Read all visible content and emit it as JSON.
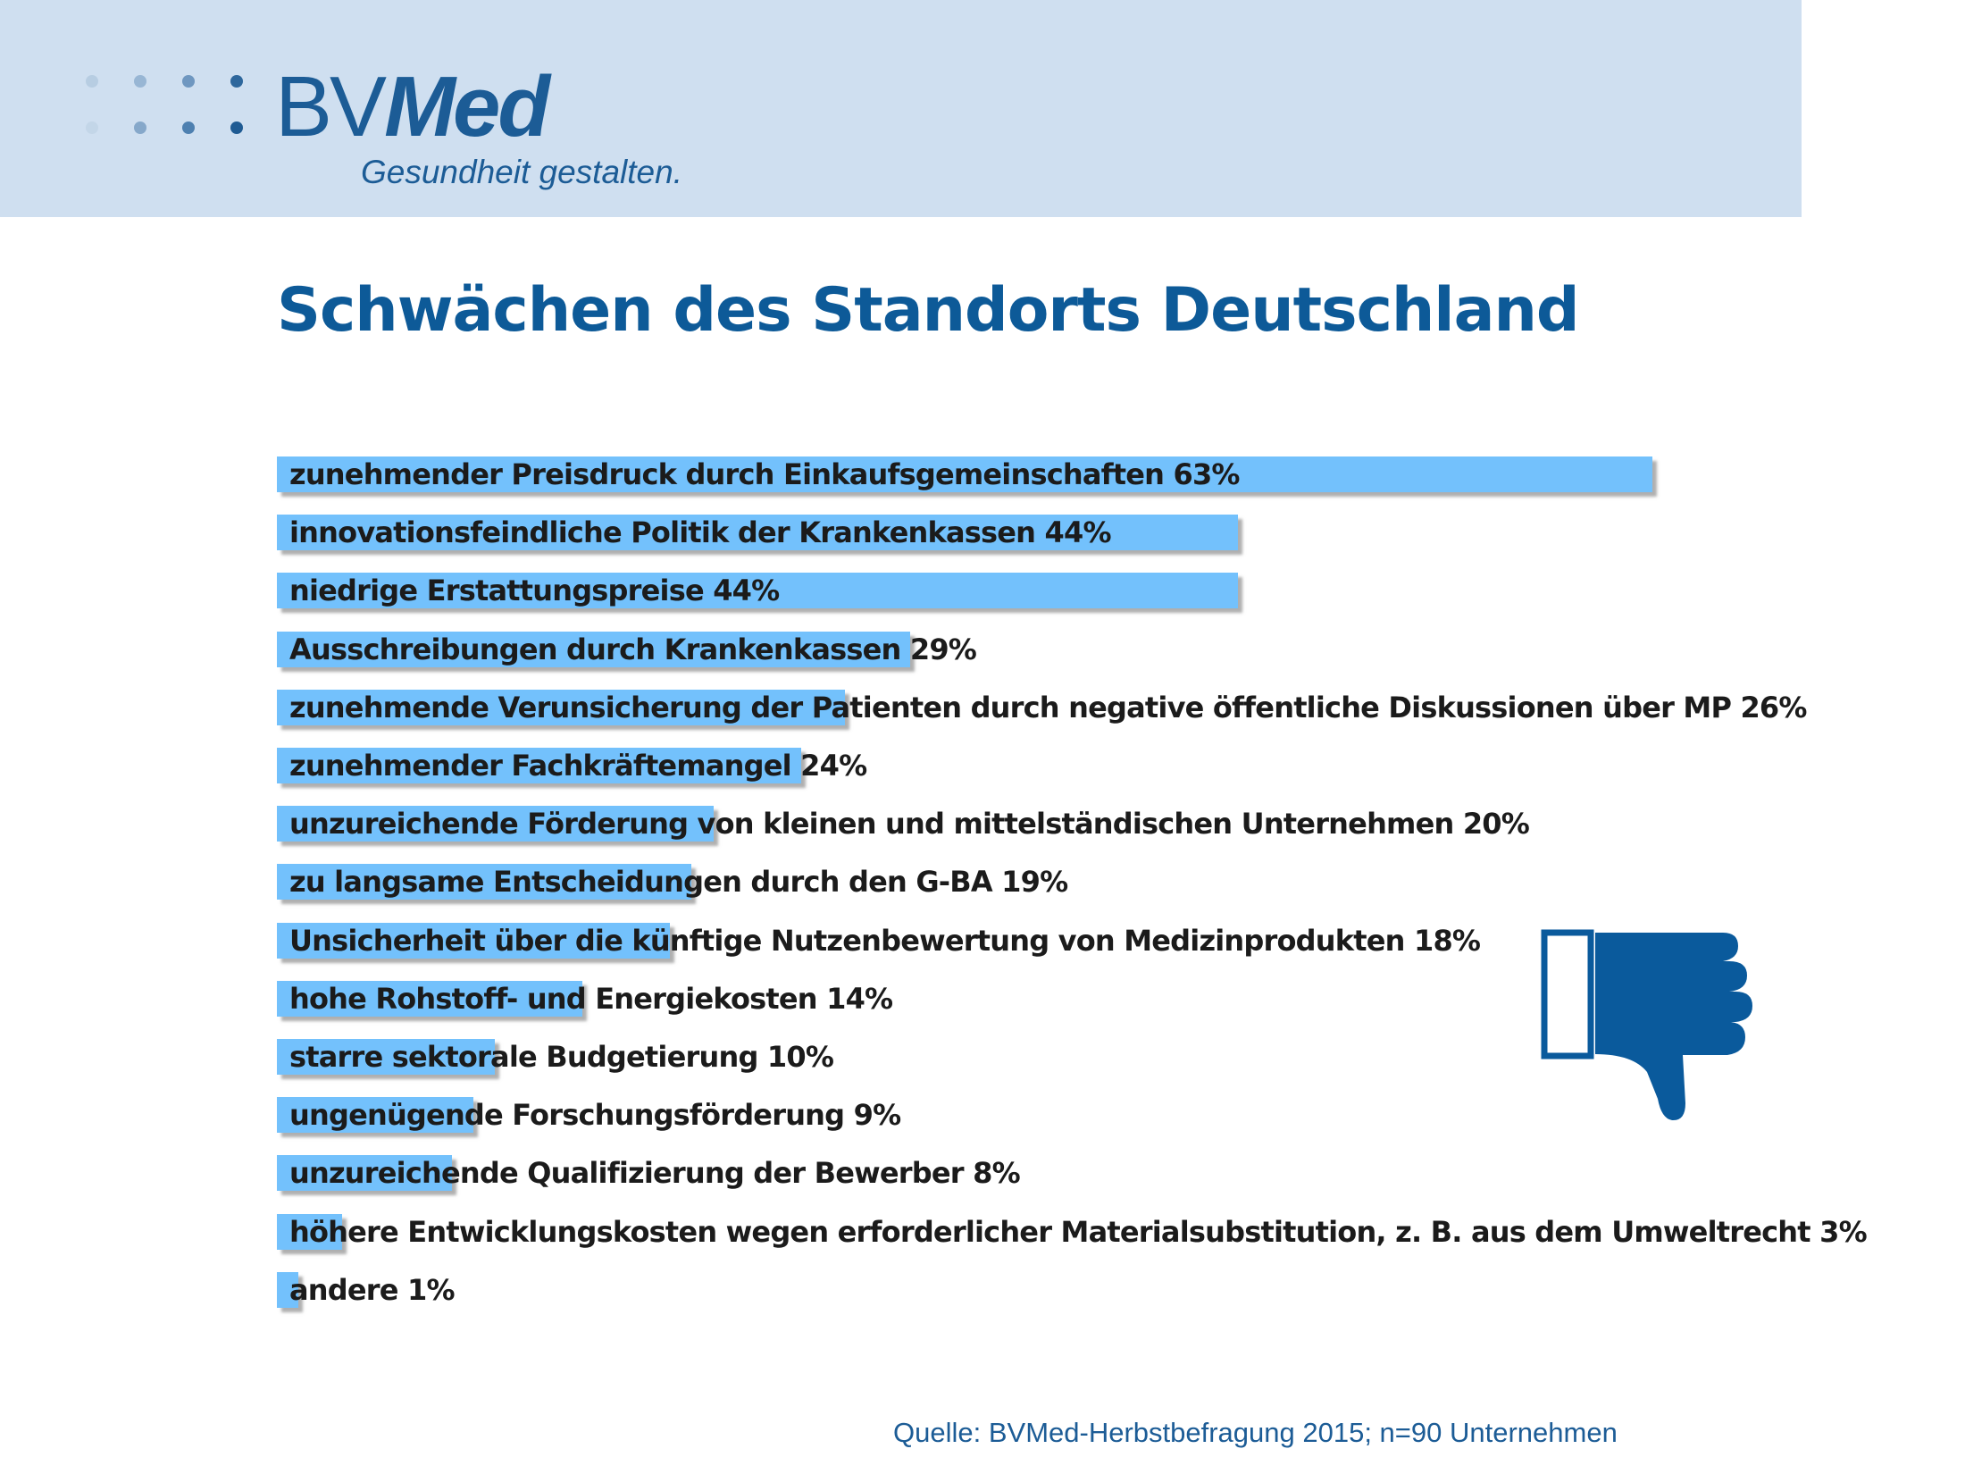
{
  "logo": {
    "wordmark_regular": "BV",
    "wordmark_bold": "Med",
    "tagline": "Gesundheit gestalten."
  },
  "title": "Schwächen des Standorts Deutschland",
  "chart_data": {
    "type": "bar",
    "orientation": "horizontal",
    "title": "Schwächen des Standorts Deutschland",
    "value_unit": "%",
    "bar_color": "#73c1fc",
    "categories": [
      "zunehmender Preisdruck durch Einkaufsgemeinschaften",
      "innovationsfeindliche Politik der Krankenkassen",
      "niedrige Erstattungspreise",
      "Ausschreibungen durch Krankenkassen",
      "zunehmende Verunsicherung der Patienten durch negative öffentliche Diskussionen über MP",
      "zunehmender Fachkräftemangel",
      "unzureichende Förderung von kleinen und mittelständischen Unternehmen",
      "zu langsame Entscheidungen durch den G-BA",
      "Unsicherheit über die künftige Nutzenbewertung von Medizinprodukten",
      "hohe Rohstoff- und Energiekosten",
      "starre sektorale Budgetierung",
      "ungenügende Forschungsförderung",
      "unzureichende Qualifizierung der Bewerber",
      "höhere Entwicklungskosten wegen erforderlicher Materialsubstitution, z. B. aus dem Umweltrecht",
      "andere"
    ],
    "values": [
      63,
      44,
      44,
      29,
      26,
      24,
      20,
      19,
      18,
      14,
      10,
      9,
      8,
      3,
      1
    ],
    "labels": [
      "zunehmender Preisdruck durch Einkaufsgemeinschaften 63%",
      "innovationsfeindliche Politik der Krankenkassen 44%",
      "niedrige Erstattungspreise 44%",
      "Ausschreibungen durch Krankenkassen 29%",
      "zunehmende Verunsicherung der Patienten durch negative öffentliche Diskussionen über MP 26%",
      "zunehmender Fachkräftemangel 24%",
      "unzureichende Förderung von kleinen und mittelständischen Unternehmen 20%",
      "zu langsame Entscheidungen durch den G-BA 19%",
      "Unsicherheit über die künftige Nutzenbewertung von Medizinprodukten 18%",
      "hohe Rohstoff- und Energiekosten 14%",
      "starre sektorale Budgetierung 10%",
      "ungenügende Forschungsförderung 9%",
      "unzureichende Qualifizierung der Bewerber 8%",
      "höhere Entwicklungskosten wegen erforderlicher Materialsubstitution, z. B. aus dem Umweltrecht 3%",
      "andere 1%"
    ]
  },
  "icon": "thumbs-down-icon",
  "source": "Quelle: BVMed-Herbstbefragung 2015; n=90 Unternehmen",
  "colors": {
    "header_band": "#cfdff0",
    "brand_blue": "#1c5c96",
    "title_blue": "#0d5a98",
    "bar": "#73c1fc"
  }
}
